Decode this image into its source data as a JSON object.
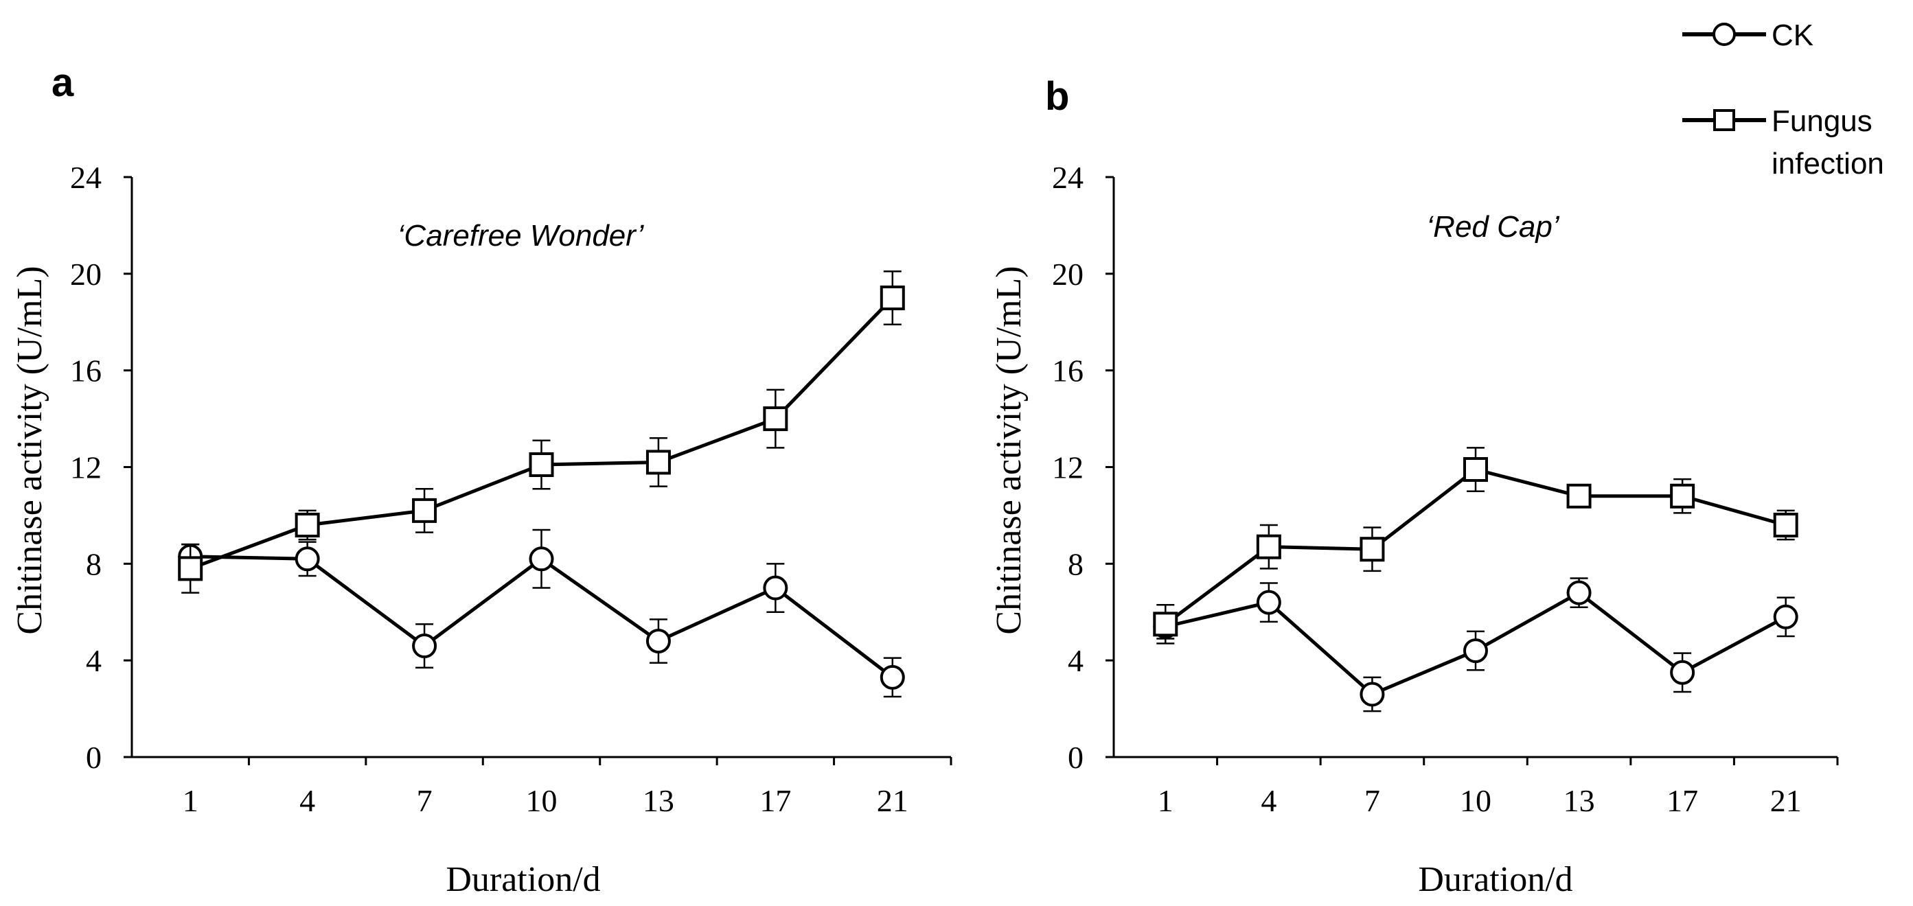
{
  "legend": {
    "items": [
      {
        "label": "CK",
        "marker": "circle"
      },
      {
        "label": "Fungus",
        "label2": "infection",
        "marker": "square"
      }
    ]
  },
  "colors": {
    "line": "#000000",
    "marker_fill": "#ffffff",
    "background": "#ffffff"
  },
  "chart_data": [
    {
      "type": "line",
      "panel_label": "a",
      "title": "‘Carefree Wonder’",
      "xlabel": "Duration/d",
      "ylabel": "Chitinase activity (U/mL)",
      "categories": [
        "1",
        "4",
        "7",
        "10",
        "13",
        "17",
        "21"
      ],
      "ylim": [
        0,
        24
      ],
      "yticks": [
        "0",
        "4",
        "8",
        "12",
        "16",
        "20",
        "24"
      ],
      "grid": false,
      "legend": "top-right",
      "series": [
        {
          "name": "CK",
          "marker": "circle",
          "values": [
            8.3,
            8.2,
            4.6,
            8.2,
            4.8,
            7.0,
            3.3
          ],
          "errors": [
            0.5,
            0.7,
            0.9,
            1.2,
            0.9,
            1.0,
            0.8
          ]
        },
        {
          "name": "Fungus infection",
          "marker": "square",
          "values": [
            7.8,
            9.6,
            10.2,
            12.1,
            12.2,
            14.0,
            19.0
          ],
          "errors": [
            1.0,
            0.6,
            0.9,
            1.0,
            1.0,
            1.2,
            1.1
          ]
        }
      ]
    },
    {
      "type": "line",
      "panel_label": "b",
      "title": "‘Red Cap’",
      "xlabel": "Duration/d",
      "ylabel": "Chitinase activity (U/mL)",
      "categories": [
        "1",
        "4",
        "7",
        "10",
        "13",
        "17",
        "21"
      ],
      "ylim": [
        0,
        24
      ],
      "yticks": [
        "0",
        "4",
        "8",
        "12",
        "16",
        "20",
        "24"
      ],
      "grid": false,
      "legend": "top-right",
      "series": [
        {
          "name": "CK",
          "marker": "circle",
          "values": [
            5.4,
            6.4,
            2.6,
            4.4,
            6.8,
            3.5,
            5.8
          ],
          "errors": [
            0.5,
            0.8,
            0.7,
            0.8,
            0.6,
            0.8,
            0.8
          ]
        },
        {
          "name": "Fungus infection",
          "marker": "square",
          "values": [
            5.5,
            8.7,
            8.6,
            11.9,
            10.8,
            10.8,
            9.6
          ],
          "errors": [
            0.8,
            0.9,
            0.9,
            0.9,
            0.2,
            0.7,
            0.6
          ]
        }
      ]
    }
  ]
}
